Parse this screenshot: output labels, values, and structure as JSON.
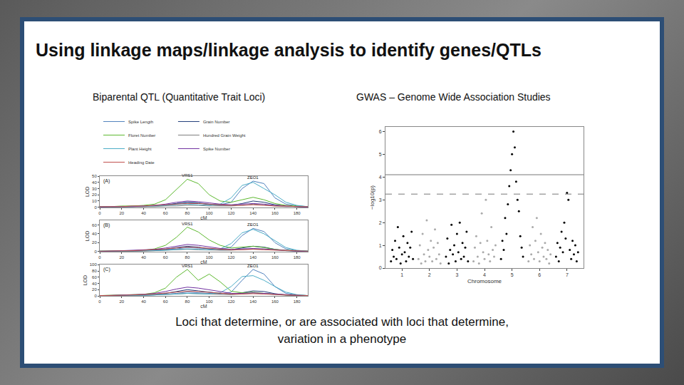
{
  "slide": {
    "title": "Using linkage maps/linkage analysis to identify genes/QTLs",
    "left_heading": "Biparental QTL (Quantitative Trait Loci)",
    "right_heading": "GWAS – Genome Wide Association Studies",
    "caption": [
      "Loci that determine, or are associated with loci that determine,",
      "variation in a phenotype"
    ]
  },
  "chart_data": [
    {
      "type": "line",
      "xlabel": "cM",
      "ylabel": "LOD",
      "grid": false,
      "x": [
        0,
        10,
        20,
        30,
        40,
        50,
        60,
        70,
        80,
        90,
        100,
        110,
        120,
        130,
        140,
        150,
        160,
        170,
        180,
        190
      ],
      "xlim": [
        0,
        190
      ],
      "xticks": [
        0,
        20,
        40,
        60,
        80,
        100,
        120,
        140,
        160,
        180
      ],
      "panels": [
        {
          "label": "(A)",
          "ylim": [
            0,
            50
          ],
          "yticks": [
            0,
            10,
            20,
            30,
            40,
            50
          ],
          "annotations": [
            {
              "x": 80,
              "y": 45,
              "text": "VRS1"
            },
            {
              "x": 140,
              "y": 42,
              "text": "ZEO1"
            }
          ]
        },
        {
          "label": "(B)",
          "ylim": [
            0,
            70
          ],
          "yticks": [
            0,
            20,
            40,
            60
          ],
          "annotations": [
            {
              "x": 80,
              "y": 55,
              "text": "VRS1"
            },
            {
              "x": 140,
              "y": 52,
              "text": "ZEO1"
            }
          ]
        },
        {
          "label": "(C)",
          "ylim": [
            0,
            100
          ],
          "yticks": [
            0,
            20,
            40,
            60,
            80,
            100
          ],
          "annotations": [
            {
              "x": 80,
              "y": 85,
              "text": "VRS1"
            },
            {
              "x": 140,
              "y": 85,
              "text": "ZEO1"
            }
          ]
        }
      ],
      "series": [
        {
          "name": "Spike Length",
          "color": "#4f81bd",
          "values": [
            [
              1,
              1,
              1,
              2,
              2,
              3,
              4,
              6,
              8,
              7,
              5,
              4,
              8,
              30,
              42,
              38,
              15,
              5,
              2,
              1
            ],
            [
              1,
              1,
              1,
              2,
              2,
              3,
              4,
              6,
              9,
              8,
              6,
              5,
              10,
              36,
              52,
              45,
              20,
              6,
              2,
              1
            ],
            [
              1,
              1,
              1,
              2,
              2,
              3,
              5,
              8,
              12,
              10,
              8,
              6,
              12,
              50,
              85,
              70,
              30,
              8,
              3,
              1
            ]
          ]
        },
        {
          "name": "Grain Number",
          "color": "#1f3d7a",
          "values": [
            [
              0,
              0,
              1,
              1,
              1,
              2,
              3,
              6,
              8,
              7,
              4,
              3,
              3,
              6,
              10,
              8,
              4,
              2,
              1,
              0
            ],
            [
              0,
              0,
              1,
              1,
              2,
              3,
              5,
              9,
              12,
              10,
              6,
              4,
              4,
              8,
              12,
              10,
              5,
              2,
              1,
              0
            ],
            [
              0,
              1,
              1,
              2,
              3,
              5,
              8,
              14,
              20,
              16,
              12,
              8,
              6,
              10,
              16,
              14,
              7,
              3,
              1,
              0
            ]
          ]
        },
        {
          "name": "Floret Number",
          "color": "#5cb82e",
          "values": [
            [
              1,
              1,
              2,
              2,
              3,
              5,
              12,
              28,
              45,
              38,
              20,
              10,
              8,
              12,
              16,
              12,
              6,
              3,
              2,
              1
            ],
            [
              1,
              1,
              2,
              2,
              3,
              6,
              14,
              32,
              55,
              44,
              26,
              14,
              8,
              10,
              12,
              9,
              5,
              3,
              2,
              1
            ],
            [
              1,
              2,
              2,
              3,
              5,
              10,
              25,
              60,
              85,
              50,
              70,
              45,
              15,
              10,
              12,
              8,
              5,
              3,
              2,
              1
            ]
          ]
        },
        {
          "name": "Hundred Grain Weight",
          "color": "#7f7f7f",
          "values": [
            [
              0,
              0,
              0,
              1,
              1,
              1,
              2,
              2,
              3,
              3,
              2,
              2,
              2,
              3,
              5,
              4,
              2,
              1,
              1,
              0
            ],
            [
              0,
              0,
              1,
              1,
              1,
              2,
              3,
              4,
              5,
              4,
              3,
              3,
              3,
              4,
              6,
              5,
              3,
              2,
              1,
              0
            ],
            [
              0,
              0,
              1,
              1,
              2,
              3,
              4,
              6,
              8,
              7,
              5,
              4,
              4,
              6,
              9,
              7,
              4,
              2,
              1,
              0
            ]
          ]
        },
        {
          "name": "Plant Height",
          "color": "#4bacc6",
          "values": [
            [
              1,
              1,
              1,
              1,
              2,
              2,
              3,
              4,
              5,
              4,
              3,
              5,
              15,
              35,
              40,
              30,
              20,
              8,
              3,
              1
            ],
            [
              1,
              1,
              1,
              1,
              2,
              2,
              3,
              4,
              6,
              5,
              4,
              6,
              18,
              42,
              50,
              40,
              24,
              9,
              3,
              1
            ],
            [
              1,
              1,
              1,
              1,
              2,
              3,
              4,
              6,
              8,
              7,
              6,
              10,
              30,
              62,
              65,
              50,
              30,
              12,
              4,
              1
            ]
          ]
        },
        {
          "name": "Spike Number",
          "color": "#7030a0",
          "values": [
            [
              0,
              1,
              1,
              1,
              2,
              3,
              5,
              8,
              10,
              9,
              7,
              5,
              4,
              5,
              6,
              5,
              3,
              2,
              1,
              0
            ],
            [
              0,
              1,
              1,
              2,
              3,
              5,
              8,
              12,
              16,
              14,
              10,
              7,
              5,
              6,
              7,
              6,
              4,
              2,
              1,
              0
            ],
            [
              0,
              1,
              2,
              3,
              5,
              8,
              14,
              22,
              28,
              25,
              20,
              14,
              8,
              8,
              10,
              8,
              5,
              3,
              1,
              0
            ]
          ]
        },
        {
          "name": "Heading Date",
          "color": "#c0504d",
          "values": [
            [
              1,
              1,
              1,
              2,
              2,
              3,
              4,
              5,
              6,
              6,
              5,
              4,
              3,
              3,
              4,
              3,
              2,
              2,
              1,
              1
            ],
            [
              1,
              1,
              2,
              2,
              3,
              4,
              6,
              8,
              10,
              9,
              7,
              5,
              4,
              4,
              5,
              4,
              3,
              2,
              1,
              1
            ],
            [
              1,
              1,
              2,
              3,
              4,
              6,
              9,
              12,
              15,
              14,
              11,
              8,
              6,
              6,
              7,
              6,
              4,
              3,
              2,
              1
            ]
          ]
        }
      ]
    },
    {
      "type": "scatter",
      "xlabel": "Chromosome",
      "ylabel": "−log10(p)",
      "grid": false,
      "xlim": [
        0.4,
        7.6
      ],
      "xticks": [
        1,
        2,
        3,
        4,
        5,
        6,
        7
      ],
      "ylim": [
        0,
        6.2
      ],
      "yticks": [
        0,
        1,
        2,
        3,
        4,
        5,
        6
      ],
      "reference_lines": [
        {
          "value": 4.1,
          "line_style": "solid"
        },
        {
          "value": 3.25,
          "line_style": "dashed"
        }
      ],
      "series": [
        {
          "color": "#000000",
          "x": [
            0.6,
            0.65,
            0.7,
            0.75,
            0.8,
            0.85,
            0.9,
            0.95,
            1.0,
            1.05,
            1.1,
            1.15,
            1.2,
            1.25,
            1.3,
            1.35,
            1.4
          ],
          "values": [
            0.3,
            0.8,
            0.5,
            1.2,
            0.4,
            1.8,
            0.9,
            0.2,
            0.6,
            1.4,
            0.7,
            0.3,
            1.1,
            0.5,
            0.9,
            1.6,
            0.4
          ]
        },
        {
          "color": "#aaaaaa",
          "x": [
            1.6,
            1.65,
            1.7,
            1.75,
            1.8,
            1.85,
            1.9,
            1.95,
            2.0,
            2.05,
            2.1,
            2.15,
            2.2,
            2.25,
            2.3,
            2.35,
            2.4
          ],
          "values": [
            0.4,
            1.0,
            0.2,
            1.5,
            0.6,
            0.3,
            2.1,
            0.8,
            0.5,
            1.2,
            0.3,
            0.9,
            1.7,
            0.4,
            1.1,
            0.6,
            0.2
          ]
        },
        {
          "color": "#000000",
          "x": [
            2.6,
            2.65,
            2.7,
            2.75,
            2.8,
            2.85,
            2.9,
            2.95,
            3.0,
            3.05,
            3.1,
            3.15,
            3.2,
            3.25,
            3.3,
            3.35,
            3.4
          ],
          "values": [
            0.5,
            1.3,
            0.2,
            0.8,
            1.9,
            0.6,
            1.0,
            0.3,
            1.5,
            0.7,
            2.0,
            0.4,
            1.1,
            0.5,
            0.9,
            1.6,
            0.3
          ]
        },
        {
          "color": "#aaaaaa",
          "x": [
            3.6,
            3.65,
            3.7,
            3.75,
            3.8,
            3.85,
            3.9,
            3.95,
            4.0,
            4.05,
            4.1,
            4.15,
            4.2,
            4.25,
            4.3,
            4.35,
            4.4
          ],
          "values": [
            0.3,
            0.9,
            1.4,
            0.5,
            0.2,
            1.1,
            2.4,
            0.7,
            0.4,
            3.0,
            1.2,
            0.6,
            0.3,
            1.8,
            0.8,
            0.5,
            1.0
          ]
        },
        {
          "color": "#000000",
          "x": [
            4.6,
            4.65,
            4.7,
            4.75,
            4.8,
            4.85,
            4.9,
            4.95,
            5.0,
            5.05,
            5.1,
            5.15,
            5.2,
            5.25,
            5.3,
            5.35,
            5.4
          ],
          "values": [
            0.4,
            1.2,
            0.8,
            2.2,
            1.5,
            2.8,
            3.6,
            4.3,
            5.0,
            6.0,
            5.3,
            3.8,
            3.0,
            2.5,
            1.4,
            0.9,
            0.5
          ]
        },
        {
          "color": "#aaaaaa",
          "x": [
            5.6,
            5.65,
            5.7,
            5.75,
            5.8,
            5.85,
            5.9,
            5.95,
            6.0,
            6.05,
            6.1,
            6.15,
            6.2,
            6.25,
            6.3,
            6.35,
            6.4
          ],
          "values": [
            0.3,
            1.0,
            0.6,
            1.8,
            0.4,
            1.2,
            2.2,
            0.7,
            0.3,
            1.5,
            0.9,
            0.5,
            1.1,
            0.4,
            0.8,
            0.2,
            0.6
          ]
        },
        {
          "color": "#000000",
          "x": [
            6.6,
            6.65,
            6.7,
            6.75,
            6.8,
            6.85,
            6.9,
            6.95,
            7.0,
            7.05,
            7.1,
            7.15,
            7.2,
            7.25,
            7.3,
            7.35,
            7.4
          ],
          "values": [
            0.5,
            1.1,
            0.3,
            0.9,
            1.6,
            0.7,
            2.0,
            1.3,
            3.3,
            3.0,
            0.8,
            0.4,
            1.2,
            0.6,
            1.0,
            0.3,
            0.7
          ]
        }
      ]
    }
  ]
}
